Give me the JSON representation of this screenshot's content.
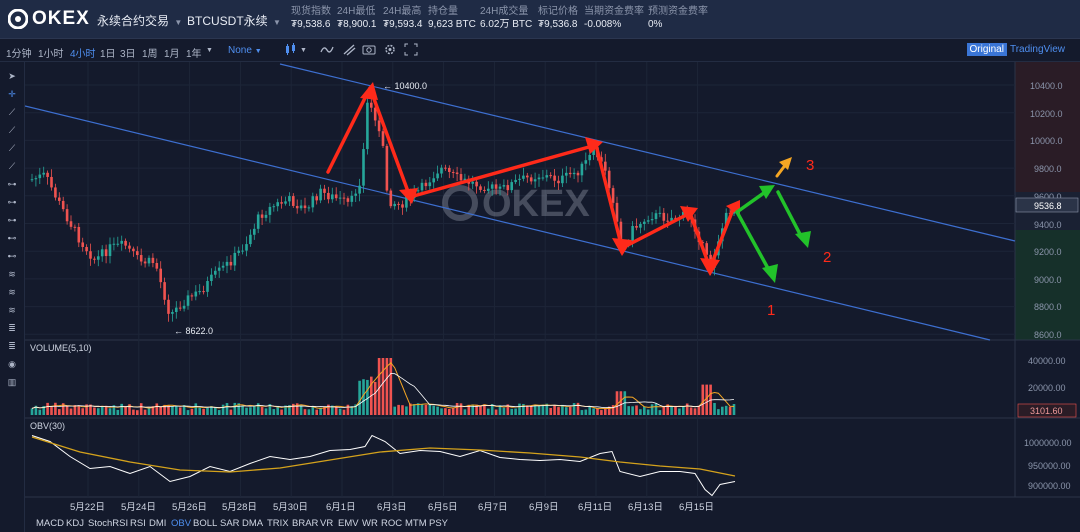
{
  "header": {
    "logo_text": "OKEX",
    "contract_label": "永续合约交易",
    "pair_label": "BTCUSDT永续",
    "stats": [
      {
        "label": "现货指数",
        "value": "₮9,538.6"
      },
      {
        "label": "24H最低",
        "value": "₮8,900.1"
      },
      {
        "label": "24H最高",
        "value": "₮9,593.4"
      },
      {
        "label": "持仓量",
        "value": "9,623 BTC"
      },
      {
        "label": "24H成交量",
        "value": "6.02万 BTC"
      },
      {
        "label": "标记价格",
        "value": "₮9,536.8"
      },
      {
        "label": "当期资金费率",
        "value": "-0.008%"
      },
      {
        "label": "预测资金费率",
        "value": "0%"
      }
    ]
  },
  "toolbar": {
    "intervals": [
      "1分钟",
      "1小时",
      "4小时",
      "1日",
      "3日",
      "1周",
      "1月",
      "1年"
    ],
    "active_interval": "4小时",
    "compare_label": "None",
    "view_original": "Original",
    "view_tradingview": "TradingView"
  },
  "chart": {
    "watermark": "OKEX",
    "high_label": "10400.0",
    "low_label": "8622.0",
    "price_axis": [
      "10400.0",
      "10200.0",
      "10000.0",
      "9800.0",
      "9600.0",
      "9400.0",
      "9200.0",
      "9000.0",
      "8800.0",
      "8600.0"
    ],
    "current_price": "9536.8",
    "volume_title": "VOLUME(5,10)",
    "volume_axis": [
      "40000.00",
      "20000.00"
    ],
    "volume_current": "3101.60",
    "obv_title": "OBV(30)",
    "obv_axis": [
      "1000000.00",
      "950000.00",
      "900000.00"
    ],
    "dates": [
      "5月22日",
      "5月24日",
      "5月26日",
      "5月28日",
      "5月30日",
      "6月1日",
      "6月3日",
      "6月5日",
      "6月7日",
      "6月9日",
      "6月11日",
      "6月13日",
      "6月15日"
    ],
    "annotations": [
      "1",
      "2",
      "3"
    ],
    "colors": {
      "up": "#26a69a",
      "down": "#ef5350",
      "channel": "#3d6fd0",
      "arrow_red": "#ff2a1a",
      "arrow_green": "#22c22a",
      "arrow_orange": "#f5a623"
    }
  },
  "indicators": [
    "MACD",
    "KDJ",
    "StochRSI",
    "RSI",
    "DMI",
    "OBV",
    "BOLL",
    "SAR",
    "DMA",
    "TRIX",
    "BRAR",
    "VR",
    "EMV",
    "WR",
    "ROC",
    "MTM",
    "PSY"
  ],
  "active_indicator": "OBV"
}
